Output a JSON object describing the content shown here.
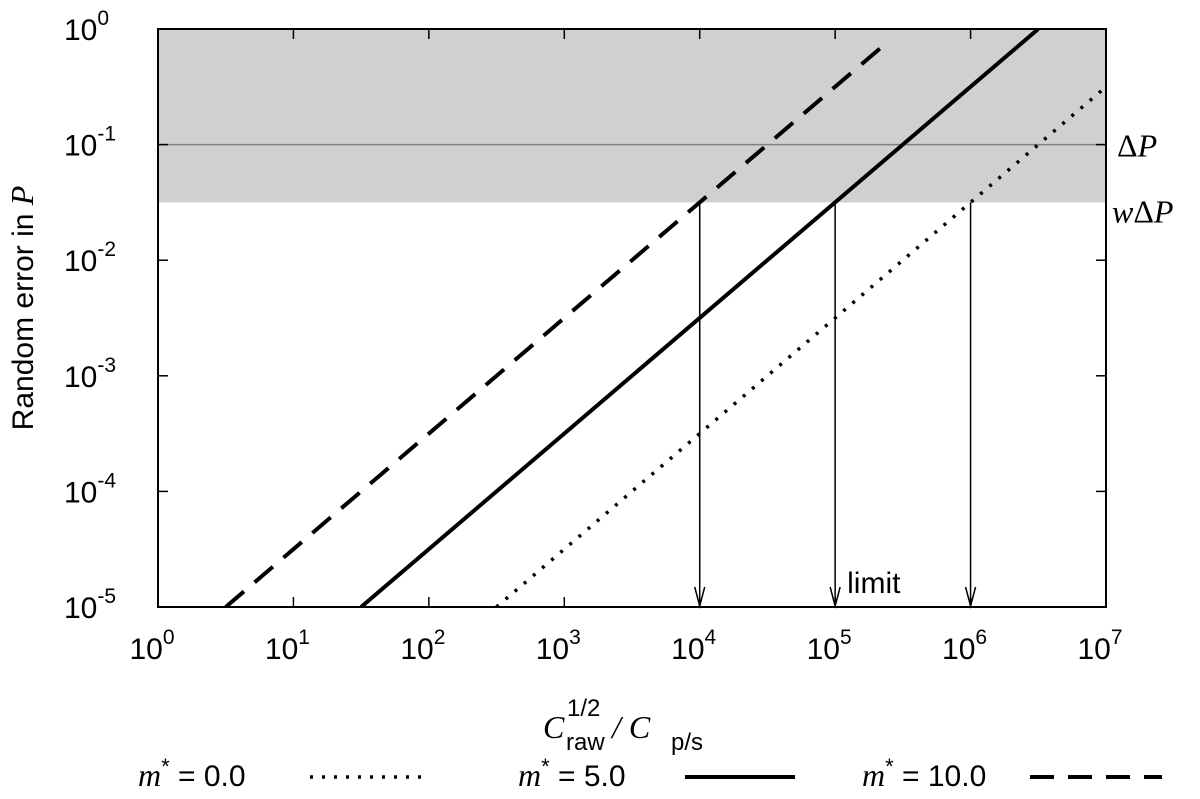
{
  "chart_data": {
    "type": "line",
    "x_scale": "log",
    "y_scale": "log",
    "xlim": [
      1,
      10000000
    ],
    "ylim": [
      1e-05,
      1
    ],
    "x_ticks": [
      {
        "base": "10",
        "exp": "0",
        "value": 1
      },
      {
        "base": "10",
        "exp": "1",
        "value": 10
      },
      {
        "base": "10",
        "exp": "2",
        "value": 100
      },
      {
        "base": "10",
        "exp": "3",
        "value": 1000
      },
      {
        "base": "10",
        "exp": "4",
        "value": 10000
      },
      {
        "base": "10",
        "exp": "5",
        "value": 100000
      },
      {
        "base": "10",
        "exp": "6",
        "value": 1000000
      },
      {
        "base": "10",
        "exp": "7",
        "value": 10000000
      }
    ],
    "y_ticks": [
      {
        "base": "10",
        "exp": "0",
        "value": 1
      },
      {
        "base": "10",
        "exp": "-1",
        "value": 0.1
      },
      {
        "base": "10",
        "exp": "-2",
        "value": 0.01
      },
      {
        "base": "10",
        "exp": "-3",
        "value": 0.001
      },
      {
        "base": "10",
        "exp": "-4",
        "value": 0.0001
      },
      {
        "base": "10",
        "exp": "-5",
        "value": 1e-05
      }
    ],
    "xlabel": {
      "main": "C",
      "sup": "1/2",
      "sub": "raw",
      "sep": " / C",
      "sub2": "p/s"
    },
    "ylabel": {
      "text": "Random error in ",
      "var": "P"
    },
    "series": [
      {
        "name": "0.0",
        "style": "dotted",
        "x": [
          316,
          10000000
        ],
        "y": [
          1e-05,
          0.316
        ]
      },
      {
        "name": "5.0",
        "style": "solid",
        "x": [
          31.6,
          3160000
        ],
        "y": [
          1e-05,
          1
        ]
      },
      {
        "name": "10.0",
        "style": "dashed",
        "x": [
          3.16,
          250000
        ],
        "y": [
          1e-05,
          0.79
        ]
      }
    ],
    "shaded_region": {
      "y_from": 0.0316,
      "y_to": 1,
      "color": "#d0d0d0"
    },
    "hline": {
      "y": 0.1,
      "color": "#808080"
    },
    "right_labels": [
      {
        "text": "ΔP",
        "y": 0.1
      },
      {
        "text": "wΔP",
        "y": 0.0316
      }
    ],
    "arrows": [
      {
        "x": 10000,
        "y_from": 0.0316
      },
      {
        "x": 100000,
        "y_from": 0.0316
      },
      {
        "x": 1000000,
        "y_from": 0.0316
      }
    ],
    "annotations": [
      {
        "text": "limit",
        "x": 100000,
        "y": 1.55e-05
      }
    ],
    "legend": {
      "placement": "bottom",
      "prefix": "m",
      "star": "*",
      "eq": " = "
    }
  }
}
